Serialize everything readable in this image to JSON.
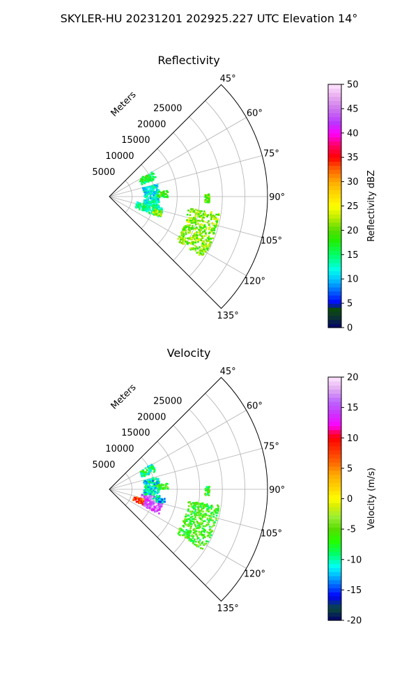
{
  "figure": {
    "suptitle": "SKYLER-HU  20231201  202925.227 UTC Elevation 14°"
  },
  "chart_data": [
    {
      "type": "polar-sector",
      "title": "Reflectivity",
      "theta_range_deg": [
        45,
        135
      ],
      "theta_ticks": [
        "45°",
        "60°",
        "75°",
        "90°",
        "105°",
        "120°",
        "135°"
      ],
      "r_label": "Meters",
      "r_ticks": [
        "5000",
        "10000",
        "15000",
        "20000",
        "25000"
      ],
      "r_max": 35000,
      "grid": true,
      "colorbar": {
        "label": "Reflectivity dBZ",
        "range": [
          0,
          50
        ],
        "ticks": [
          "0",
          "5",
          "10",
          "15",
          "20",
          "25",
          "30",
          "35",
          "40",
          "45",
          "50"
        ]
      },
      "echo_regions": [
        {
          "theta": [
            58,
            68
          ],
          "r": [
            7500,
            11000
          ],
          "value": 16
        },
        {
          "theta": [
            74,
            102
          ],
          "r": [
            7500,
            11000
          ],
          "value": 12
        },
        {
          "theta": [
            83,
            90
          ],
          "r": [
            10500,
            12800
          ],
          "value": 18
        },
        {
          "theta": [
            100,
            112
          ],
          "r": [
            6000,
            12000
          ],
          "value": 14
        },
        {
          "theta": [
            105,
            111
          ],
          "r": [
            10000,
            12000
          ],
          "value": 22
        },
        {
          "theta": [
            88,
            93
          ],
          "r": [
            21000,
            22000
          ],
          "value": 20
        },
        {
          "theta": [
            98,
            123
          ],
          "r": [
            17500,
            24500
          ],
          "value": 21
        }
      ]
    },
    {
      "type": "polar-sector",
      "title": "Velocity",
      "theta_range_deg": [
        45,
        135
      ],
      "theta_ticks": [
        "45°",
        "60°",
        "75°",
        "90°",
        "105°",
        "120°",
        "135°"
      ],
      "r_label": "Meters",
      "r_ticks": [
        "5000",
        "10000",
        "15000",
        "20000",
        "25000"
      ],
      "r_max": 35000,
      "grid": true,
      "colorbar": {
        "label": "Velocity (m/s)",
        "range": [
          -20,
          20
        ],
        "ticks": [
          "-20",
          "-15",
          "-10",
          "-5",
          "0",
          "5",
          "10",
          "15",
          "20"
        ]
      },
      "echo_regions": [
        {
          "theta": [
            58,
            68
          ],
          "r": [
            7500,
            11000
          ],
          "value": -9
        },
        {
          "theta": [
            74,
            102
          ],
          "r": [
            7500,
            11000
          ],
          "value": -11
        },
        {
          "theta": [
            83,
            90
          ],
          "r": [
            10500,
            12800
          ],
          "value": -6
        },
        {
          "theta": [
            98,
            106
          ],
          "r": [
            7000,
            10000
          ],
          "value": 16
        },
        {
          "theta": [
            105,
            114
          ],
          "r": [
            5500,
            8000
          ],
          "value": 7
        },
        {
          "theta": [
            104,
            116
          ],
          "r": [
            8000,
            12000
          ],
          "value": 15
        },
        {
          "theta": [
            99,
            104
          ],
          "r": [
            10500,
            12500
          ],
          "value": -12
        },
        {
          "theta": [
            88,
            93
          ],
          "r": [
            21000,
            22000
          ],
          "value": -7
        },
        {
          "theta": [
            98,
            123
          ],
          "r": [
            17500,
            24500
          ],
          "value": -6
        }
      ]
    }
  ]
}
